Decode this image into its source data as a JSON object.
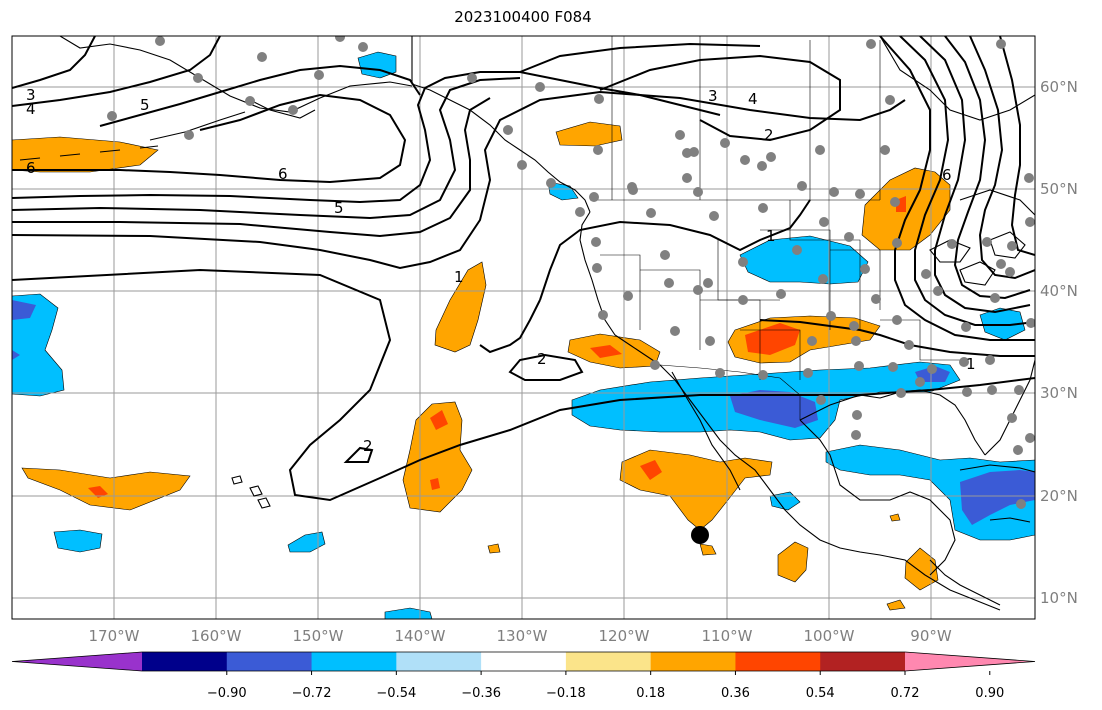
{
  "title": "2023100400 F084",
  "lon_labels": [
    "170°W",
    "160°W",
    "150°W",
    "140°W",
    "130°W",
    "120°W",
    "110°W",
    "100°W",
    "90°W"
  ],
  "lat_labels": [
    "60°N",
    "50°N",
    "40°N",
    "30°N",
    "20°N",
    "10°N"
  ],
  "colorbar": {
    "ticks": [
      "−0.90",
      "−0.72",
      "−0.54",
      "−0.36",
      "−0.18",
      "0.18",
      "0.36",
      "0.54",
      "0.72",
      "0.90"
    ],
    "colors": [
      "#9932cc",
      "#00008b",
      "#3b5bd6",
      "#00bfff",
      "#b0e0f8",
      "#ffffff",
      "#fbe48a",
      "#ffa500",
      "#ff4500",
      "#b22222",
      "#ff88b0"
    ]
  },
  "contour_labels": [
    "3",
    "4",
    "5",
    "6",
    "6",
    "5",
    "1",
    "2",
    "2",
    "3",
    "4",
    "2",
    "1",
    "1",
    "6"
  ],
  "colors": {
    "grid": "#9a9a9a",
    "axis_label": "#7f7f7f",
    "station": "#808080"
  }
}
